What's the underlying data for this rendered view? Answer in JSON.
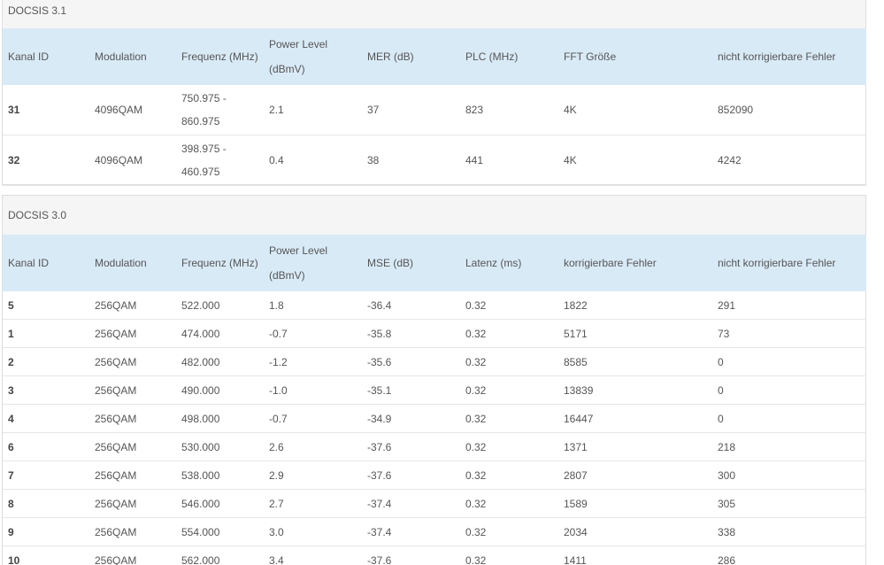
{
  "docsis31": {
    "title": "DOCSIS 3.1",
    "headers": [
      "Kanal ID",
      "Modulation",
      "Frequenz (MHz)",
      "Power Level (dBmV)",
      "MER (dB)",
      "PLC (MHz)",
      "FFT Größe",
      "nicht korrigierbare Fehler"
    ],
    "rows": [
      [
        "31",
        "4096QAM",
        "750.975 - 860.975",
        "2.1",
        "37",
        "823",
        "4K",
        "852090"
      ],
      [
        "32",
        "4096QAM",
        "398.975 - 460.975",
        "0.4",
        "38",
        "441",
        "4K",
        "4242"
      ]
    ]
  },
  "docsis30": {
    "title": "DOCSIS 3.0",
    "headers": [
      "Kanal ID",
      "Modulation",
      "Frequenz (MHz)",
      "Power Level (dBmV)",
      "MSE (dB)",
      "Latenz (ms)",
      "korrigierbare Fehler",
      "nicht korrigierbare Fehler"
    ],
    "rows": [
      [
        "5",
        "256QAM",
        "522.000",
        "1.8",
        "-36.4",
        "0.32",
        "1822",
        "291"
      ],
      [
        "1",
        "256QAM",
        "474.000",
        "-0.7",
        "-35.8",
        "0.32",
        "5171",
        "73"
      ],
      [
        "2",
        "256QAM",
        "482.000",
        "-1.2",
        "-35.6",
        "0.32",
        "8585",
        "0"
      ],
      [
        "3",
        "256QAM",
        "490.000",
        "-1.0",
        "-35.1",
        "0.32",
        "13839",
        "0"
      ],
      [
        "4",
        "256QAM",
        "498.000",
        "-0.7",
        "-34.9",
        "0.32",
        "16447",
        "0"
      ],
      [
        "6",
        "256QAM",
        "530.000",
        "2.6",
        "-37.6",
        "0.32",
        "1371",
        "218"
      ],
      [
        "7",
        "256QAM",
        "538.000",
        "2.9",
        "-37.6",
        "0.32",
        "2807",
        "300"
      ],
      [
        "8",
        "256QAM",
        "546.000",
        "2.7",
        "-37.4",
        "0.32",
        "1589",
        "305"
      ],
      [
        "9",
        "256QAM",
        "554.000",
        "3.0",
        "-37.4",
        "0.32",
        "2034",
        "338"
      ],
      [
        "10",
        "256QAM",
        "562.000",
        "3.4",
        "-37.6",
        "0.32",
        "1411",
        "286"
      ]
    ]
  },
  "colors": {
    "header_bg": "#d9eaf7",
    "title_bg": "#f5f5f5",
    "text": "#555555"
  }
}
